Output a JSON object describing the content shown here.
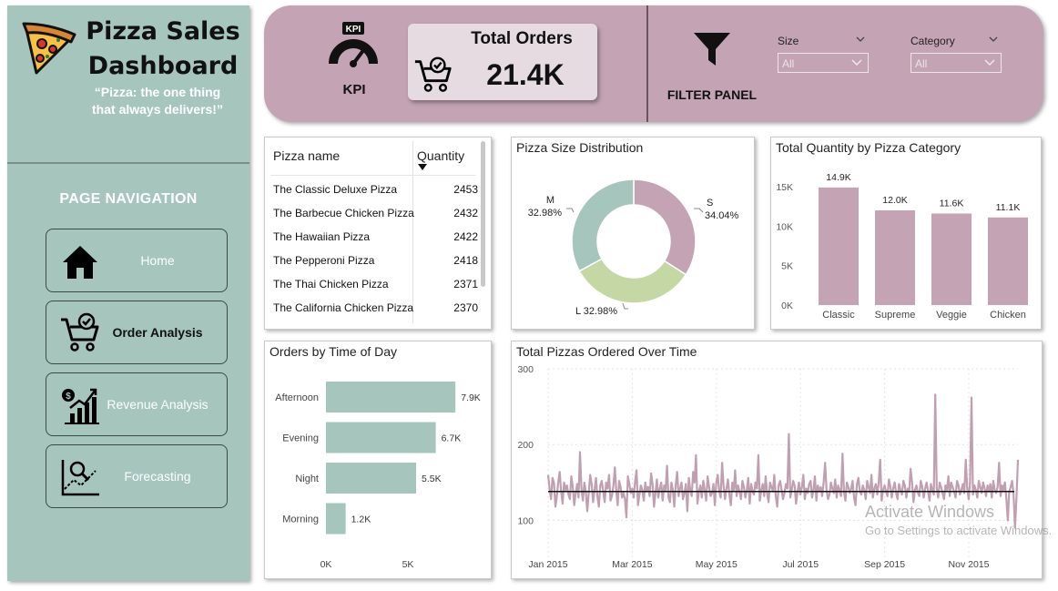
{
  "sidebar": {
    "title_line1": "Pizza Sales",
    "title_line2": "Dashboard",
    "quote_line1": "“Pizza: the one thing",
    "quote_line2": "that always delivers!”",
    "nav_heading": "PAGE NAVIGATION",
    "nav_items": [
      {
        "label": "Home",
        "icon": "home-icon",
        "active": false
      },
      {
        "label": "Order Analysis",
        "icon": "cart-check-icon",
        "active": true
      },
      {
        "label": "Revenue Analysis",
        "icon": "revenue-chart-icon",
        "active": false
      },
      {
        "label": "Forecasting",
        "icon": "forecast-chart-icon",
        "active": false
      }
    ]
  },
  "header": {
    "kpi_badge": "KPI",
    "kpi_label": "KPI",
    "kpi_card": {
      "title": "Total Orders",
      "value": "21.4K"
    },
    "filter_label": "FILTER PANEL",
    "slicers": [
      {
        "title": "Size",
        "value": "All"
      },
      {
        "title": "Category",
        "value": "All"
      }
    ]
  },
  "table": {
    "columns": [
      "Pizza name",
      "Quantity"
    ],
    "rows": [
      {
        "name": "The Classic Deluxe Pizza",
        "qty": "2453"
      },
      {
        "name": "The Barbecue Chicken Pizza",
        "qty": "2432"
      },
      {
        "name": "The Hawaiian Pizza",
        "qty": "2422"
      },
      {
        "name": "The Pepperoni Pizza",
        "qty": "2418"
      },
      {
        "name": "The Thai Chicken Pizza",
        "qty": "2371"
      },
      {
        "name": "The California Chicken Pizza",
        "qty": "2370"
      }
    ]
  },
  "colors": {
    "mauve": "#c4a4b4",
    "sage": "#a6c5bd",
    "light_green": "#c5d8a4",
    "line": "#c09fb1"
  },
  "chart_data": [
    {
      "id": "size",
      "type": "pie",
      "title": "Pizza Size Distribution",
      "slices": [
        {
          "label": "S",
          "value": 34.04,
          "display": "34.04%",
          "color": "#c4a4b4"
        },
        {
          "label": "L",
          "value": 32.98,
          "display": "32.98%",
          "color": "#c5d8a4"
        },
        {
          "label": "M",
          "value": 32.98,
          "display": "32.98%",
          "color": "#a6c5bd"
        }
      ]
    },
    {
      "id": "category",
      "type": "bar",
      "title": "Total Quantity by Pizza Category",
      "categories": [
        "Classic",
        "Supreme",
        "Veggie",
        "Chicken"
      ],
      "values": [
        14.9,
        12.0,
        11.6,
        11.1
      ],
      "data_labels": [
        "14.9K",
        "12.0K",
        "11.6K",
        "11.1K"
      ],
      "yticks": [
        "0K",
        "5K",
        "10K",
        "15K"
      ],
      "ylim": [
        0,
        15
      ],
      "color": "#c4a4b4"
    },
    {
      "id": "time_of_day",
      "type": "bar",
      "orientation": "horizontal",
      "title": "Orders by Time of Day",
      "categories": [
        "Afternoon",
        "Evening",
        "Night",
        "Morning"
      ],
      "values": [
        7.9,
        6.7,
        5.5,
        1.2
      ],
      "data_labels": [
        "7.9K",
        "6.7K",
        "5.5K",
        "1.2K"
      ],
      "xticks": [
        "0K",
        "5K"
      ],
      "xlim": [
        0,
        9
      ],
      "color": "#a6c5bd"
    },
    {
      "id": "over_time",
      "type": "line",
      "title": "Total Pizzas Ordered Over Time",
      "ylim": [
        50,
        300
      ],
      "yticks": [
        100,
        200,
        300
      ],
      "xtick_labels": [
        "Jan 2015",
        "Mar 2015",
        "May 2015",
        "Jul 2015",
        "Sep 2015",
        "Nov 2015"
      ],
      "average": 138,
      "series_summary": "daily totals mostly 110-180 with spikes to ~265 near Nov 2015",
      "values": [
        160,
        142,
        128,
        156,
        150,
        118,
        132,
        150,
        164,
        138,
        122,
        150,
        140,
        146,
        134,
        128,
        158,
        144,
        120,
        136,
        148,
        130,
        190,
        142,
        126,
        150,
        138,
        112,
        136,
        160,
        148,
        124,
        140,
        156,
        132,
        118,
        146,
        152,
        138,
        124,
        150,
        142,
        160,
        126,
        132,
        146,
        170,
        138,
        120,
        152,
        144,
        130,
        136,
        128,
        104,
        158,
        148,
        136,
        142,
        130,
        152,
        166,
        120,
        134,
        146,
        140,
        126,
        150,
        138,
        144,
        132,
        162,
        148,
        118,
        136,
        154,
        130,
        142,
        150,
        126,
        146,
        138,
        172,
        130,
        124,
        150,
        140,
        118,
        146,
        164,
        132,
        142,
        150,
        128,
        136,
        148,
        112,
        156,
        140,
        132,
        164,
        150,
        186,
        122,
        138,
        146,
        130,
        152,
        140,
        126,
        158,
        144,
        132,
        136,
        148,
        120,
        150,
        160,
        138,
        130,
        176,
        146,
        128,
        142,
        154,
        134,
        120,
        150,
        140,
        166,
        132,
        146,
        138,
        128,
        152,
        144,
        130,
        140,
        156,
        122,
        148,
        138,
        134,
        150,
        142,
        186,
        126,
        140,
        148,
        132,
        158,
        136,
        124,
        150,
        144,
        138,
        160,
        132,
        118,
        146,
        152,
        140,
        128,
        136,
        148,
        142,
        214,
        130,
        140,
        152,
        146,
        122,
        138,
        150,
        134,
        144,
        160,
        128,
        142,
        136,
        148,
        152,
        130,
        140,
        158,
        126,
        146,
        138,
        144,
        132,
        150,
        176,
        140,
        128,
        134,
        150,
        142,
        136,
        154,
        130,
        146,
        140,
        132,
        188,
        138,
        126,
        150,
        144,
        136,
        142,
        152,
        130,
        120,
        148,
        156,
        138,
        134,
        146,
        140,
        128,
        152,
        144,
        136,
        160,
        130,
        142,
        148,
        134,
        150,
        180,
        126,
        140,
        146,
        138,
        132,
        154,
        144,
        130,
        142,
        150,
        136,
        128,
        148,
        140,
        134,
        152,
        146,
        130,
        142,
        138,
        168,
        150,
        124,
        140,
        146,
        136,
        132,
        152,
        144,
        130,
        142,
        150,
        138,
        126,
        148,
        140,
        134,
        266,
        142,
        130,
        150,
        144,
        136,
        128,
        146,
        140,
        158,
        132,
        150,
        144,
        138,
        130,
        152,
        146,
        134,
        140,
        148,
        136,
        180,
        142,
        128,
        150,
        262,
        134,
        146,
        140,
        130,
        152,
        144,
        136,
        150,
        142,
        132,
        146,
        138,
        148,
        130,
        152,
        140,
        136,
        144,
        176,
        132,
        146,
        140,
        150,
        128,
        100,
        138,
        144,
        152,
        134,
        90,
        130,
        180
      ]
    }
  ],
  "watermark": {
    "line1": "Activate Windows",
    "line2": "Go to Settings to activate Windows."
  }
}
